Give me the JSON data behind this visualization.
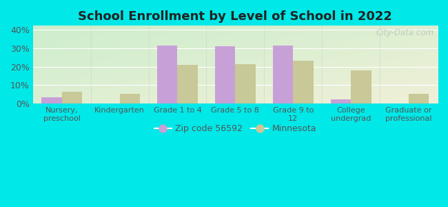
{
  "title": "School Enrollment by Level of School in 2022",
  "categories": [
    "Nursery,\npreschool",
    "Kindergarten",
    "Grade 1 to 4",
    "Grade 5 to 8",
    "Grade 9 to\n12",
    "College\nundergrad",
    "Graduate or\nprofessional"
  ],
  "zip_values": [
    3.5,
    0.0,
    31.5,
    31.0,
    31.5,
    2.5,
    0.0
  ],
  "mn_values": [
    6.5,
    5.5,
    21.0,
    21.5,
    23.0,
    18.0,
    5.5
  ],
  "zip_color": "#c8a0d8",
  "mn_color": "#c8c898",
  "background_color": "#00e8e8",
  "ylim": [
    0,
    42
  ],
  "yticks": [
    0,
    10,
    20,
    30,
    40
  ],
  "yticklabels": [
    "0%",
    "10%",
    "20%",
    "30%",
    "40%"
  ],
  "legend_zip_label": "Zip code 56592",
  "legend_mn_label": "Minnesota",
  "watermark": "City-Data.com",
  "bar_width": 0.35
}
